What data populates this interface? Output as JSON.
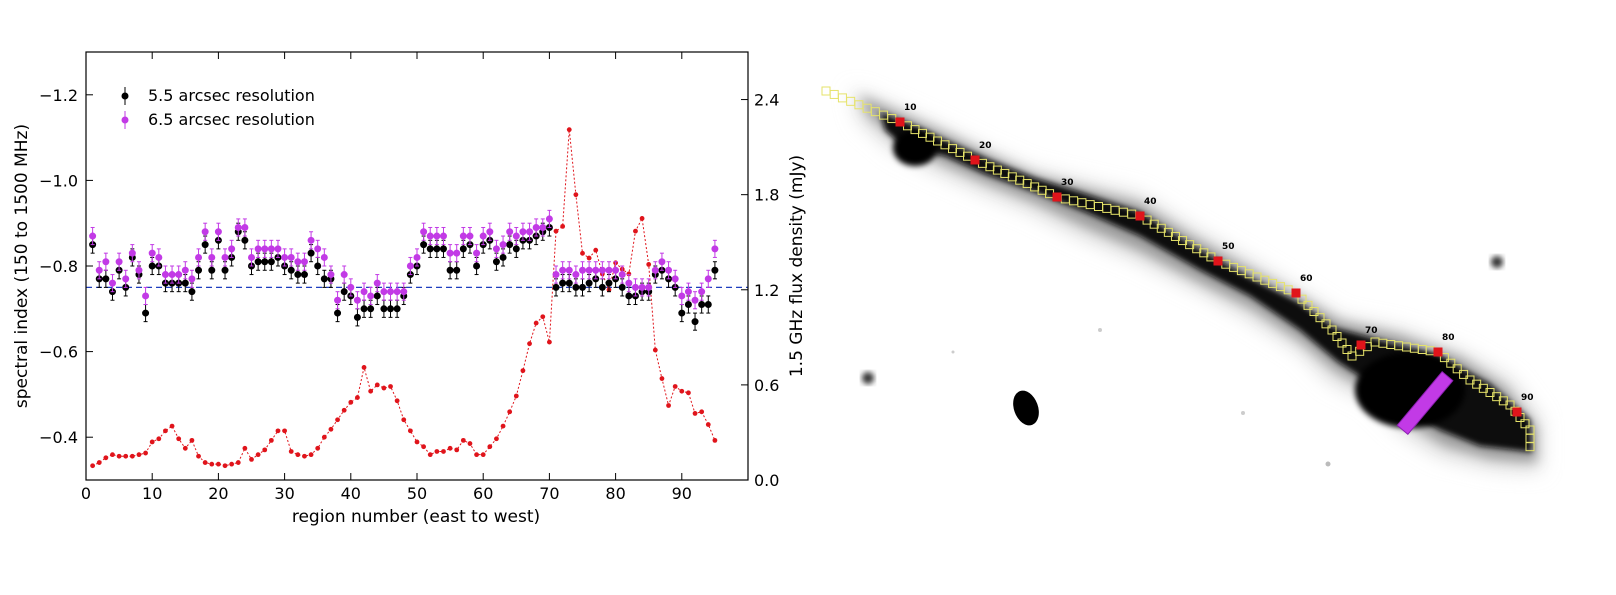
{
  "chart_data": [
    {
      "type": "scatter",
      "title": "",
      "xlabel": "region number (east to west)",
      "ylabel": "spectral index (150 to 1500 MHz)",
      "ylabel_right": "1.5 GHz flux density (mJy)",
      "xlim": [
        0,
        100
      ],
      "ylim": [
        -0.3,
        -1.3
      ],
      "ylim_right": [
        0.0,
        2.7
      ],
      "xticks": [
        0,
        10,
        20,
        30,
        40,
        50,
        60,
        70,
        80,
        90
      ],
      "xtick_labels": [
        "0",
        "10",
        "20",
        "30",
        "40",
        "50",
        "60",
        "70",
        "80",
        "90"
      ],
      "yticks": [
        -1.2,
        -1.0,
        -0.8,
        -0.6,
        -0.4
      ],
      "ytick_labels": [
        "−1.2",
        "−1.0",
        "−0.8",
        "−0.6",
        "−0.4"
      ],
      "yticks_right": [
        0.0,
        0.6,
        1.2,
        1.8,
        2.4
      ],
      "ytick_right_labels": [
        "0.0",
        "0.6",
        "1.2",
        "1.8",
        "2.4"
      ],
      "reference_line": {
        "y": -0.75,
        "style": "dashed",
        "color": "#1f3fbf"
      },
      "legend": {
        "placement": "top-left",
        "entries": [
          "5.5 arcsec resolution",
          "6.5 arcsec resolution"
        ]
      },
      "series": [
        {
          "name": "5.5 arcsec resolution",
          "color": "#000000",
          "x": [
            1,
            2,
            3,
            4,
            5,
            6,
            7,
            8,
            9,
            10,
            11,
            12,
            13,
            14,
            15,
            16,
            17,
            18,
            19,
            20,
            21,
            22,
            23,
            24,
            25,
            26,
            27,
            28,
            29,
            30,
            31,
            32,
            33,
            34,
            35,
            36,
            37,
            38,
            39,
            40,
            41,
            42,
            43,
            44,
            45,
            46,
            47,
            48,
            49,
            50,
            51,
            52,
            53,
            54,
            55,
            56,
            57,
            58,
            59,
            60,
            61,
            62,
            63,
            64,
            65,
            66,
            67,
            68,
            69,
            70,
            71,
            72,
            73,
            74,
            75,
            76,
            77,
            78,
            79,
            80,
            81,
            82,
            83,
            84,
            85,
            86,
            87,
            88,
            89,
            90,
            91,
            92,
            93,
            94,
            95
          ],
          "y": [
            -0.85,
            -0.77,
            -0.77,
            -0.74,
            -0.79,
            -0.75,
            -0.82,
            -0.78,
            -0.69,
            -0.8,
            -0.8,
            -0.76,
            -0.76,
            -0.76,
            -0.76,
            -0.74,
            -0.79,
            -0.85,
            -0.79,
            -0.86,
            -0.79,
            -0.82,
            -0.88,
            -0.86,
            -0.8,
            -0.81,
            -0.81,
            -0.81,
            -0.82,
            -0.8,
            -0.79,
            -0.78,
            -0.78,
            -0.83,
            -0.8,
            -0.77,
            -0.77,
            -0.69,
            -0.74,
            -0.73,
            -0.68,
            -0.7,
            -0.7,
            -0.73,
            -0.7,
            -0.7,
            -0.7,
            -0.73,
            -0.78,
            -0.8,
            -0.85,
            -0.84,
            -0.84,
            -0.84,
            -0.79,
            -0.79,
            -0.84,
            -0.85,
            -0.8,
            -0.85,
            -0.86,
            -0.81,
            -0.82,
            -0.85,
            -0.84,
            -0.86,
            -0.86,
            -0.87,
            -0.88,
            -0.89,
            -0.75,
            -0.76,
            -0.76,
            -0.75,
            -0.75,
            -0.76,
            -0.77,
            -0.75,
            -0.76,
            -0.77,
            -0.75,
            -0.73,
            -0.73,
            -0.74,
            -0.74,
            -0.78,
            -0.79,
            -0.77,
            -0.75,
            -0.69,
            -0.71,
            -0.67,
            -0.71,
            -0.71,
            -0.79
          ],
          "yerr": 0.02
        },
        {
          "name": "6.5 arcsec resolution",
          "color": "#c23ae6",
          "x": [
            1,
            2,
            3,
            4,
            5,
            6,
            7,
            8,
            9,
            10,
            11,
            12,
            13,
            14,
            15,
            16,
            17,
            18,
            19,
            20,
            21,
            22,
            23,
            24,
            25,
            26,
            27,
            28,
            29,
            30,
            31,
            32,
            33,
            34,
            35,
            36,
            37,
            38,
            39,
            40,
            41,
            42,
            43,
            44,
            45,
            46,
            47,
            48,
            49,
            50,
            51,
            52,
            53,
            54,
            55,
            56,
            57,
            58,
            59,
            60,
            61,
            62,
            63,
            64,
            65,
            66,
            67,
            68,
            69,
            70,
            71,
            72,
            73,
            74,
            75,
            76,
            77,
            78,
            79,
            80,
            81,
            82,
            83,
            84,
            85,
            86,
            87,
            88,
            89,
            90,
            91,
            92,
            93,
            94,
            95
          ],
          "y": [
            -0.87,
            -0.79,
            -0.81,
            -0.76,
            -0.81,
            -0.77,
            -0.83,
            -0.79,
            -0.73,
            -0.83,
            -0.82,
            -0.78,
            -0.78,
            -0.78,
            -0.79,
            -0.77,
            -0.82,
            -0.88,
            -0.82,
            -0.88,
            -0.82,
            -0.84,
            -0.89,
            -0.89,
            -0.82,
            -0.84,
            -0.84,
            -0.84,
            -0.84,
            -0.82,
            -0.82,
            -0.81,
            -0.81,
            -0.86,
            -0.84,
            -0.82,
            -0.78,
            -0.72,
            -0.78,
            -0.75,
            -0.72,
            -0.74,
            -0.73,
            -0.76,
            -0.74,
            -0.74,
            -0.74,
            -0.74,
            -0.8,
            -0.82,
            -0.88,
            -0.87,
            -0.87,
            -0.87,
            -0.83,
            -0.83,
            -0.87,
            -0.87,
            -0.83,
            -0.87,
            -0.88,
            -0.84,
            -0.85,
            -0.88,
            -0.87,
            -0.88,
            -0.88,
            -0.89,
            -0.89,
            -0.91,
            -0.78,
            -0.79,
            -0.79,
            -0.78,
            -0.79,
            -0.79,
            -0.79,
            -0.79,
            -0.79,
            -0.79,
            -0.78,
            -0.76,
            -0.75,
            -0.75,
            -0.75,
            -0.79,
            -0.81,
            -0.79,
            -0.77,
            -0.73,
            -0.74,
            -0.72,
            -0.74,
            -0.77,
            -0.84
          ],
          "yerr": 0.02
        },
        {
          "name": "1.5 GHz flux density",
          "axis": "right",
          "color": "#e0141b",
          "style": "dotted-line-markers",
          "x": [
            1,
            2,
            3,
            4,
            5,
            6,
            7,
            8,
            9,
            10,
            11,
            12,
            13,
            14,
            15,
            16,
            17,
            18,
            19,
            20,
            21,
            22,
            23,
            24,
            25,
            26,
            27,
            28,
            29,
            30,
            31,
            32,
            33,
            34,
            35,
            36,
            37,
            38,
            39,
            40,
            41,
            42,
            43,
            44,
            45,
            46,
            47,
            48,
            49,
            50,
            51,
            52,
            53,
            54,
            55,
            56,
            57,
            58,
            59,
            60,
            61,
            62,
            63,
            64,
            65,
            66,
            67,
            68,
            69,
            70,
            71,
            72,
            73,
            74,
            75,
            76,
            77,
            78,
            79,
            80,
            81,
            82,
            83,
            84,
            85,
            86,
            87,
            88,
            89,
            90,
            91,
            92,
            93,
            94,
            95
          ],
          "y": [
            0.09,
            0.11,
            0.14,
            0.16,
            0.15,
            0.15,
            0.15,
            0.16,
            0.17,
            0.24,
            0.26,
            0.31,
            0.34,
            0.26,
            0.2,
            0.25,
            0.15,
            0.11,
            0.1,
            0.1,
            0.09,
            0.1,
            0.11,
            0.2,
            0.13,
            0.16,
            0.19,
            0.25,
            0.31,
            0.31,
            0.18,
            0.16,
            0.15,
            0.16,
            0.2,
            0.27,
            0.32,
            0.38,
            0.44,
            0.49,
            0.52,
            0.71,
            0.56,
            0.6,
            0.58,
            0.59,
            0.5,
            0.38,
            0.31,
            0.24,
            0.21,
            0.16,
            0.18,
            0.18,
            0.2,
            0.19,
            0.25,
            0.23,
            0.16,
            0.16,
            0.21,
            0.26,
            0.34,
            0.43,
            0.53,
            0.69,
            0.86,
            0.99,
            1.03,
            0.87,
            1.57,
            1.6,
            2.21,
            1.8,
            1.43,
            1.4,
            1.45,
            1.3,
            1.2,
            1.37,
            1.33,
            1.3,
            1.57,
            1.65,
            1.36,
            0.82,
            0.64,
            0.47,
            0.59,
            0.56,
            0.55,
            0.42,
            0.43,
            0.35,
            0.25
          ]
        }
      ]
    },
    {
      "type": "image",
      "title": "radio map with numbered regions",
      "region_labels": [
        "10",
        "20",
        "30",
        "40",
        "50",
        "60",
        "70",
        "80",
        "90"
      ],
      "marker_color": "#e0141b",
      "grid_color": "#e6e36a",
      "beam_color": "#c23ae6"
    }
  ]
}
